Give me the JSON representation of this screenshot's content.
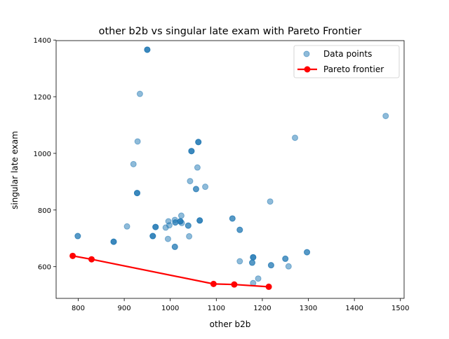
{
  "chart_data": {
    "type": "scatter",
    "title": "other b2b vs singular late exam with Pareto Frontier",
    "xlabel": "other b2b",
    "ylabel": "singular late exam",
    "xlim": [
      752,
      1508
    ],
    "ylim": [
      488,
      1398
    ],
    "xticks": [
      800,
      900,
      1000,
      1100,
      1200,
      1300,
      1400,
      1500
    ],
    "yticks": [
      600,
      800,
      1000,
      1200,
      1400
    ],
    "grid": false,
    "legend_position": "top-right",
    "series": [
      {
        "name": "Data points",
        "kind": "scatter",
        "color": "#1f77b4",
        "alpha": 0.5,
        "points": [
          [
            950,
            1366
          ],
          [
            950,
            1366
          ],
          [
            950,
            1366
          ],
          [
            934,
            1210
          ],
          [
            1468,
            1132
          ],
          [
            929,
            1042
          ],
          [
            1271,
            1055
          ],
          [
            1061,
            1040
          ],
          [
            1061,
            1040
          ],
          [
            1061,
            1040
          ],
          [
            1046,
            1008
          ],
          [
            1046,
            1008
          ],
          [
            1046,
            1008
          ],
          [
            920,
            962
          ],
          [
            1059,
            950
          ],
          [
            1043,
            902
          ],
          [
            1076,
            882
          ],
          [
            1056,
            874
          ],
          [
            1056,
            874
          ],
          [
            928,
            860
          ],
          [
            928,
            860
          ],
          [
            928,
            860
          ],
          [
            1217,
            830
          ],
          [
            1024,
            780
          ],
          [
            1135,
            770
          ],
          [
            1135,
            770
          ],
          [
            1064,
            763
          ],
          [
            1064,
            763
          ],
          [
            1064,
            763
          ],
          [
            1010,
            765
          ],
          [
            1022,
            760
          ],
          [
            1022,
            760
          ],
          [
            1022,
            760
          ],
          [
            1011,
            756
          ],
          [
            1011,
            756
          ],
          [
            996,
            760
          ],
          [
            1025,
            754
          ],
          [
            998,
            746
          ],
          [
            1039,
            745
          ],
          [
            1039,
            745
          ],
          [
            906,
            742
          ],
          [
            968,
            740
          ],
          [
            968,
            740
          ],
          [
            968,
            740
          ],
          [
            990,
            738
          ],
          [
            1151,
            730
          ],
          [
            1151,
            730
          ],
          [
            799,
            708
          ],
          [
            799,
            708
          ],
          [
            962,
            708
          ],
          [
            962,
            708
          ],
          [
            962,
            708
          ],
          [
            1041,
            707
          ],
          [
            995,
            698
          ],
          [
            877,
            688
          ],
          [
            877,
            688
          ],
          [
            877,
            688
          ],
          [
            1010,
            670
          ],
          [
            1010,
            670
          ],
          [
            1297,
            651
          ],
          [
            1297,
            651
          ],
          [
            1180,
            633
          ],
          [
            1180,
            633
          ],
          [
            1180,
            633
          ],
          [
            1250,
            628
          ],
          [
            1250,
            628
          ],
          [
            1151,
            619
          ],
          [
            1178,
            614
          ],
          [
            1178,
            614
          ],
          [
            1219,
            605
          ],
          [
            1219,
            605
          ],
          [
            1257,
            601
          ],
          [
            1191,
            558
          ],
          [
            1180,
            542
          ]
        ]
      },
      {
        "name": "Pareto frontier",
        "kind": "line",
        "color": "#ff0000",
        "points": [
          [
            788,
            638
          ],
          [
            829,
            626
          ],
          [
            1094,
            539
          ],
          [
            1139,
            537
          ],
          [
            1214,
            529
          ]
        ]
      }
    ]
  }
}
